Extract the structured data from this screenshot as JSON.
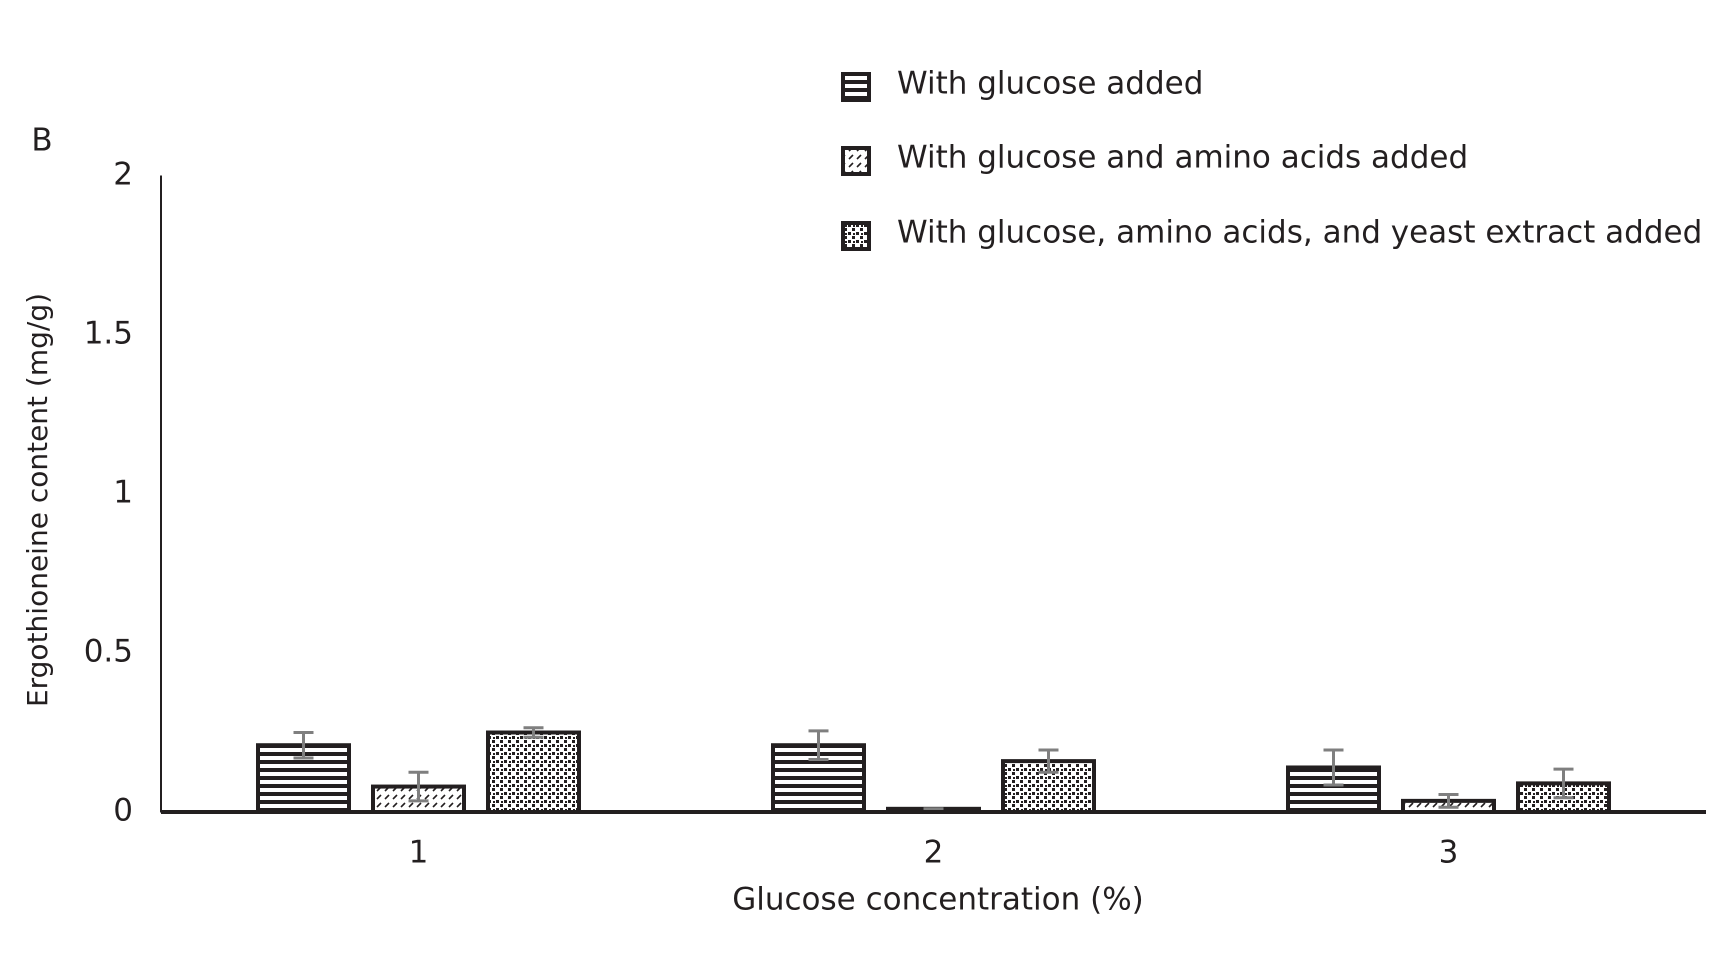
{
  "chart_data": {
    "type": "bar",
    "panel_label": "B",
    "x_label": "Glucose concentration (%)",
    "y_label": "Ergothioneine content (mg/g)",
    "categories": [
      "1",
      "2",
      "3"
    ],
    "series": [
      {
        "name": "With glucose added",
        "color": "#231f20",
        "pattern": "stripes",
        "values": [
          0.21,
          0.21,
          0.14
        ],
        "errors": [
          0.04,
          0.045,
          0.055
        ]
      },
      {
        "name": "With glucose and amino acids added",
        "color": "#231f20",
        "pattern": "dashes",
        "values": [
          0.08,
          0.01,
          0.035
        ],
        "errors": [
          0.045,
          0,
          0.02
        ]
      },
      {
        "name": "With glucose, amino acids, and yeast extract added",
        "color": "#231f20",
        "pattern": "checks",
        "values": [
          0.25,
          0.16,
          0.09
        ],
        "errors": [
          0.015,
          0.035,
          0.045
        ]
      }
    ],
    "error_color": "#7f7f7f",
    "ylim": [
      0,
      2
    ],
    "yticks": [
      0,
      0.5,
      1,
      1.5,
      2
    ],
    "grid": false
  }
}
